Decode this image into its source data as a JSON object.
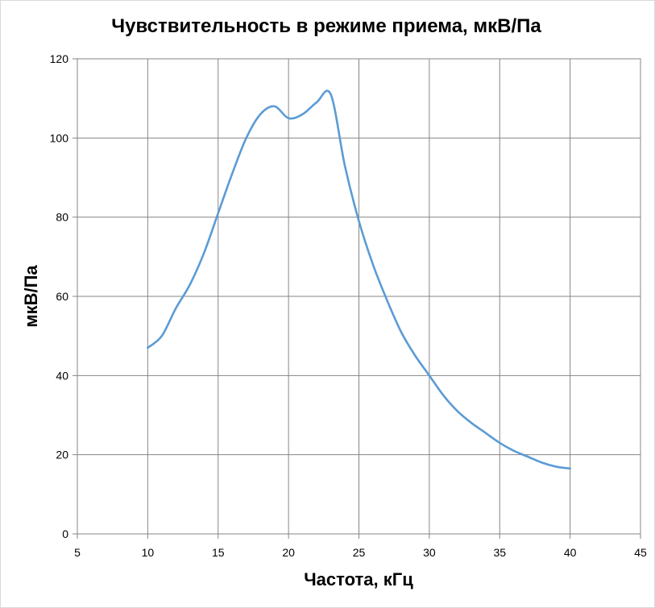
{
  "chart_data": {
    "type": "line",
    "title": "Чувствительность в режиме приема, мкВ/Па",
    "xlabel": "Частота, кГц",
    "ylabel": "мкВ/Па",
    "xlim": [
      5,
      45
    ],
    "ylim": [
      0,
      120
    ],
    "xticks": [
      5,
      10,
      15,
      20,
      25,
      30,
      35,
      40,
      45
    ],
    "yticks": [
      0,
      20,
      40,
      60,
      80,
      100,
      120
    ],
    "grid": true,
    "legend": "none",
    "series": [
      {
        "color": "#5b9bd5",
        "x": [
          10,
          11,
          12,
          13,
          14,
          15,
          16,
          17,
          18,
          19,
          20,
          21,
          22,
          23,
          24,
          25,
          26,
          27,
          28,
          29,
          30,
          31,
          32,
          33,
          34,
          35,
          36,
          37,
          38,
          39,
          40
        ],
        "y": [
          47,
          50,
          57,
          63,
          71,
          81,
          91,
          100,
          106,
          108,
          105,
          106,
          109,
          111,
          93,
          79,
          68,
          59,
          51,
          45,
          40,
          35,
          31,
          28,
          25.5,
          23,
          21,
          19.5,
          18,
          17,
          16.5
        ]
      }
    ]
  }
}
